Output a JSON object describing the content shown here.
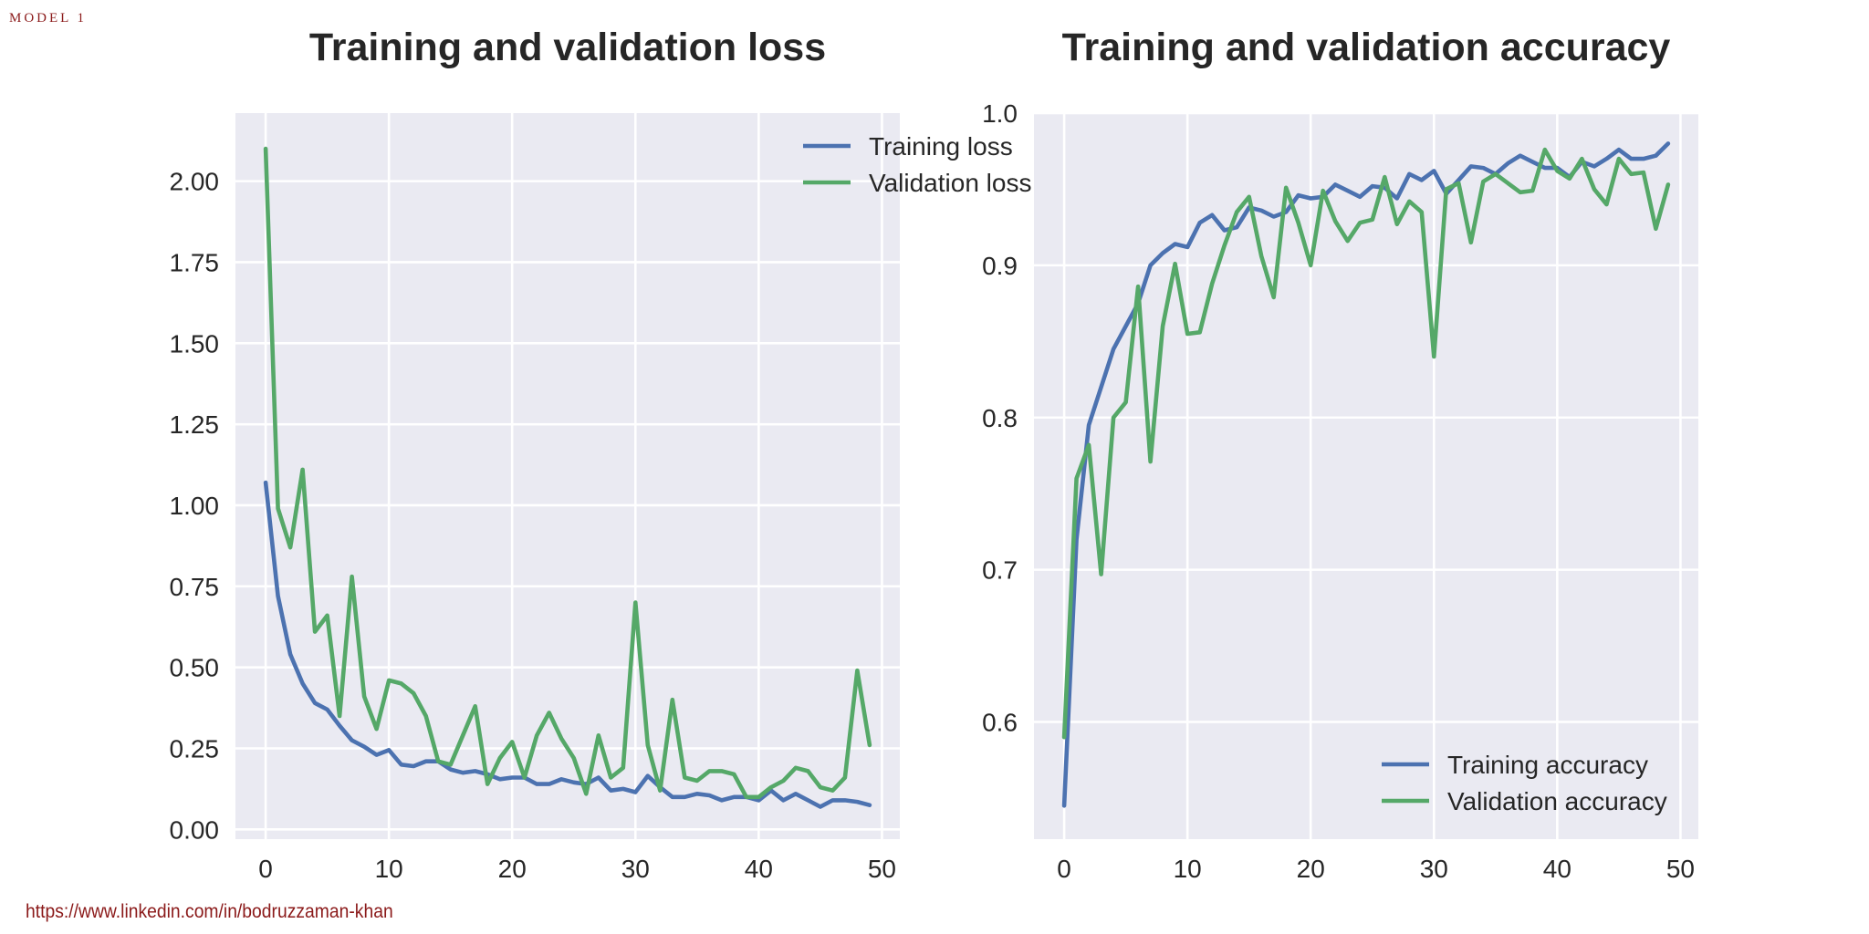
{
  "header": {
    "model_label": "MODEL 1"
  },
  "footer": {
    "link_text": "https://www.linkedin.com/in/bodruzzaman-khan"
  },
  "colors": {
    "training": "#4c72b0",
    "validation": "#55a868",
    "plot_bg": "#eaeaf2",
    "grid": "#ffffff"
  },
  "chart_data": [
    {
      "type": "line",
      "title": "Training and validation loss",
      "xlim": [
        -2.45,
        51.45
      ],
      "ylim": [
        -0.03,
        2.21
      ],
      "xticks": [
        0,
        10,
        20,
        30,
        40,
        50
      ],
      "yticks": [
        0.0,
        0.25,
        0.5,
        0.75,
        1.0,
        1.25,
        1.5,
        1.75,
        2.0
      ],
      "ytick_labels": [
        "0.00",
        "0.25",
        "0.50",
        "0.75",
        "1.00",
        "1.25",
        "1.50",
        "1.75",
        "2.00"
      ],
      "grid": true,
      "legend_position": "upper right",
      "x": [
        0,
        1,
        2,
        3,
        4,
        5,
        6,
        7,
        8,
        9,
        10,
        11,
        12,
        13,
        14,
        15,
        16,
        17,
        18,
        19,
        20,
        21,
        22,
        23,
        24,
        25,
        26,
        27,
        28,
        29,
        30,
        31,
        32,
        33,
        34,
        35,
        36,
        37,
        38,
        39,
        40,
        41,
        42,
        43,
        44,
        45,
        46,
        47,
        48,
        49
      ],
      "series": [
        {
          "name": "Training loss",
          "color_key": "training",
          "values": [
            1.07,
            0.72,
            0.54,
            0.45,
            0.39,
            0.37,
            0.32,
            0.275,
            0.255,
            0.23,
            0.245,
            0.2,
            0.195,
            0.21,
            0.21,
            0.185,
            0.175,
            0.18,
            0.17,
            0.155,
            0.16,
            0.16,
            0.14,
            0.14,
            0.155,
            0.145,
            0.14,
            0.16,
            0.12,
            0.125,
            0.115,
            0.165,
            0.13,
            0.1,
            0.1,
            0.11,
            0.105,
            0.09,
            0.1,
            0.1,
            0.09,
            0.12,
            0.09,
            0.11,
            0.09,
            0.07,
            0.09,
            0.09,
            0.085,
            0.075
          ]
        },
        {
          "name": "Validation loss",
          "color_key": "validation",
          "values": [
            2.1,
            0.99,
            0.87,
            1.11,
            0.61,
            0.66,
            0.35,
            0.78,
            0.41,
            0.31,
            0.46,
            0.45,
            0.42,
            0.35,
            0.21,
            0.2,
            0.29,
            0.38,
            0.14,
            0.22,
            0.27,
            0.16,
            0.29,
            0.36,
            0.28,
            0.22,
            0.11,
            0.29,
            0.16,
            0.19,
            0.7,
            0.26,
            0.12,
            0.4,
            0.16,
            0.15,
            0.18,
            0.18,
            0.17,
            0.1,
            0.1,
            0.13,
            0.15,
            0.19,
            0.18,
            0.13,
            0.12,
            0.16,
            0.49,
            0.26
          ]
        }
      ]
    },
    {
      "type": "line",
      "title": "Training and validation accuracy",
      "xlim": [
        -2.45,
        51.45
      ],
      "ylim": [
        0.523,
        1.0
      ],
      "xticks": [
        0,
        10,
        20,
        30,
        40,
        50
      ],
      "yticks": [
        0.6,
        0.7,
        0.8,
        0.9,
        1.0
      ],
      "ytick_labels": [
        "0.6",
        "0.7",
        "0.8",
        "0.9",
        "1.0"
      ],
      "grid": true,
      "legend_position": "lower right",
      "x": [
        0,
        1,
        2,
        3,
        4,
        5,
        6,
        7,
        8,
        9,
        10,
        11,
        12,
        13,
        14,
        15,
        16,
        17,
        18,
        19,
        20,
        21,
        22,
        23,
        24,
        25,
        26,
        27,
        28,
        29,
        30,
        31,
        32,
        33,
        34,
        35,
        36,
        37,
        38,
        39,
        40,
        41,
        42,
        43,
        44,
        45,
        46,
        47,
        48,
        49
      ],
      "series": [
        {
          "name": "Training accuracy",
          "color_key": "training",
          "values": [
            0.545,
            0.72,
            0.795,
            0.82,
            0.845,
            0.86,
            0.875,
            0.9,
            0.908,
            0.914,
            0.912,
            0.928,
            0.933,
            0.923,
            0.925,
            0.938,
            0.936,
            0.932,
            0.935,
            0.946,
            0.944,
            0.945,
            0.953,
            0.949,
            0.945,
            0.952,
            0.951,
            0.944,
            0.96,
            0.956,
            0.962,
            0.947,
            0.956,
            0.965,
            0.964,
            0.96,
            0.967,
            0.972,
            0.968,
            0.964,
            0.964,
            0.958,
            0.968,
            0.965,
            0.97,
            0.976,
            0.97,
            0.97,
            0.972,
            0.98
          ]
        },
        {
          "name": "Validation accuracy",
          "color_key": "validation",
          "values": [
            0.59,
            0.76,
            0.782,
            0.697,
            0.8,
            0.81,
            0.886,
            0.771,
            0.86,
            0.901,
            0.855,
            0.856,
            0.888,
            0.913,
            0.935,
            0.945,
            0.906,
            0.879,
            0.951,
            0.928,
            0.9,
            0.949,
            0.929,
            0.916,
            0.928,
            0.93,
            0.958,
            0.927,
            0.942,
            0.935,
            0.84,
            0.95,
            0.954,
            0.915,
            0.955,
            0.96,
            0.954,
            0.948,
            0.949,
            0.976,
            0.962,
            0.957,
            0.97,
            0.95,
            0.94,
            0.97,
            0.96,
            0.961,
            0.924,
            0.953
          ]
        }
      ]
    }
  ]
}
